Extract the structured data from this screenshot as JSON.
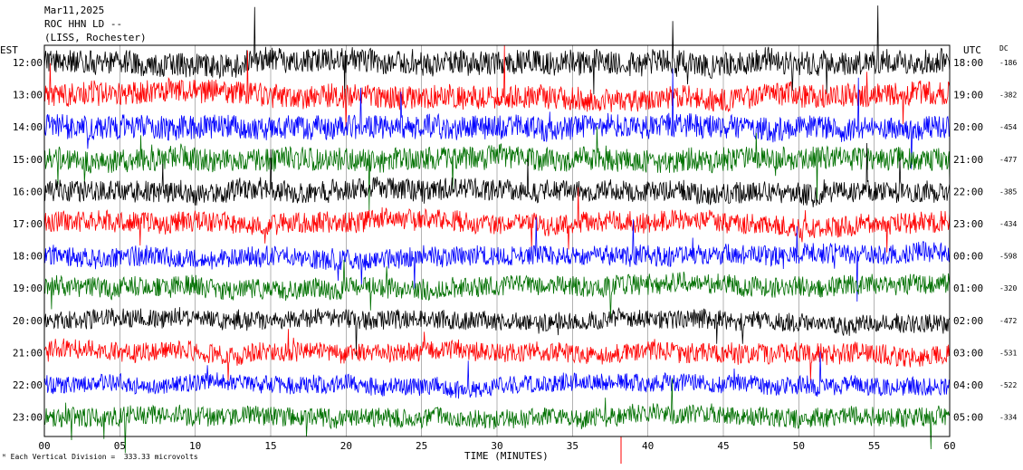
{
  "header": {
    "date": "Mar11,2025",
    "station": "ROC HHN LD --",
    "location": "(LISS, Rochester)"
  },
  "labels": {
    "left_tz": "EST",
    "right_tz": "UTC",
    "dc": "DC",
    "xlabel": "TIME (MINUTES)",
    "footer": "Each Vertical Division =  333.33 microvolts"
  },
  "chart_data": {
    "type": "line",
    "title": "",
    "xlabel": "TIME (MINUTES)",
    "xlim": [
      0,
      60
    ],
    "x_ticks": [
      "00",
      "05",
      "10",
      "15",
      "20",
      "25",
      "30",
      "35",
      "40",
      "45",
      "50",
      "55",
      "60"
    ],
    "trace_colors": [
      "#000000",
      "#ff0000",
      "#0000ff",
      "#007000"
    ],
    "rows": [
      {
        "est": "12:00",
        "utc": "18:00",
        "dc": "-186",
        "color": "#000000",
        "noise": 0.95
      },
      {
        "est": "13:00",
        "utc": "19:00",
        "dc": "-382",
        "color": "#ff0000",
        "noise": 0.9
      },
      {
        "est": "14:00",
        "utc": "20:00",
        "dc": "-454",
        "color": "#0000ff",
        "noise": 0.9
      },
      {
        "est": "15:00",
        "utc": "21:00",
        "dc": "-477",
        "color": "#007000",
        "noise": 0.85
      },
      {
        "est": "16:00",
        "utc": "22:00",
        "dc": "-385",
        "color": "#000000",
        "noise": 0.75
      },
      {
        "est": "17:00",
        "utc": "23:00",
        "dc": "-434",
        "color": "#ff0000",
        "noise": 0.7
      },
      {
        "est": "18:00",
        "utc": "00:00",
        "dc": "-598",
        "color": "#0000ff",
        "noise": 0.65
      },
      {
        "est": "19:00",
        "utc": "01:00",
        "dc": "-320",
        "color": "#007000",
        "noise": 0.65
      },
      {
        "est": "20:00",
        "utc": "02:00",
        "dc": "-472",
        "color": "#000000",
        "noise": 0.55
      },
      {
        "est": "21:00",
        "utc": "03:00",
        "dc": "-531",
        "color": "#ff0000",
        "noise": 0.6
      },
      {
        "est": "22:00",
        "utc": "04:00",
        "dc": "-522",
        "color": "#0000ff",
        "noise": 0.5
      },
      {
        "est": "23:00",
        "utc": "05:00",
        "dc": "-334",
        "color": "#007000",
        "noise": 0.6
      }
    ],
    "grid": true
  }
}
